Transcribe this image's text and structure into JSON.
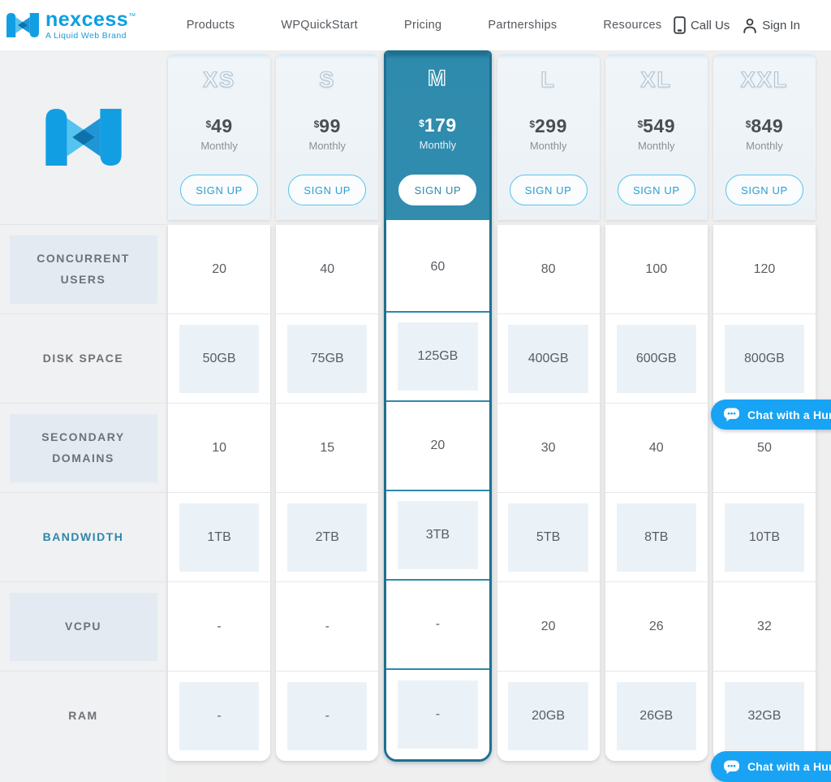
{
  "nav": {
    "logo": {
      "brand": "nexcess",
      "tm": "™",
      "tagline": "A Liquid Web Brand"
    },
    "items": [
      "Products",
      "WPQuickStart",
      "Pricing",
      "Partnerships",
      "Resources"
    ],
    "call_us": "Call Us",
    "sign_in": "Sign In"
  },
  "pricing": {
    "currency": "$",
    "period": "Monthly",
    "sign_up": "SIGN UP",
    "plans": [
      {
        "name": "XS",
        "price": "49",
        "selected": false
      },
      {
        "name": "S",
        "price": "99",
        "selected": false
      },
      {
        "name": "M",
        "price": "179",
        "selected": true
      },
      {
        "name": "L",
        "price": "299",
        "selected": false
      },
      {
        "name": "XL",
        "price": "549",
        "selected": false
      },
      {
        "name": "XXL",
        "price": "849",
        "selected": false
      }
    ],
    "rows": [
      {
        "label": "CONCURRENT USERS",
        "label_boxed": true,
        "values_boxed": false,
        "highlight": false,
        "values": [
          "20",
          "40",
          "60",
          "80",
          "100",
          "120"
        ]
      },
      {
        "label": "DISK SPACE",
        "label_boxed": false,
        "values_boxed": true,
        "highlight": false,
        "values": [
          "50GB",
          "75GB",
          "125GB",
          "400GB",
          "600GB",
          "800GB"
        ]
      },
      {
        "label": "SECONDARY DOMAINS",
        "label_boxed": true,
        "values_boxed": false,
        "highlight": false,
        "values": [
          "10",
          "15",
          "20",
          "30",
          "40",
          "50"
        ]
      },
      {
        "label": "BANDWIDTH",
        "label_boxed": false,
        "values_boxed": true,
        "highlight": true,
        "values": [
          "1TB",
          "2TB",
          "3TB",
          "5TB",
          "8TB",
          "10TB"
        ]
      },
      {
        "label": "VCPU",
        "label_boxed": true,
        "values_boxed": false,
        "highlight": false,
        "values": [
          "-",
          "-",
          "-",
          "20",
          "26",
          "32"
        ]
      },
      {
        "label": "RAM",
        "label_boxed": false,
        "values_boxed": true,
        "highlight": false,
        "values": [
          "-",
          "-",
          "-",
          "20GB",
          "26GB",
          "32GB"
        ]
      }
    ]
  },
  "chat": {
    "label": "Chat with a Human"
  },
  "colors": {
    "brand_blue": "#0a9fe3",
    "selected_teal": "#318cae",
    "selected_border": "#1f7091",
    "signup_border": "#57c3ee",
    "chat_blue": "#18a3f4",
    "label_box_bg": "#e3eaf2",
    "value_box_bg": "#ebf2f7"
  }
}
